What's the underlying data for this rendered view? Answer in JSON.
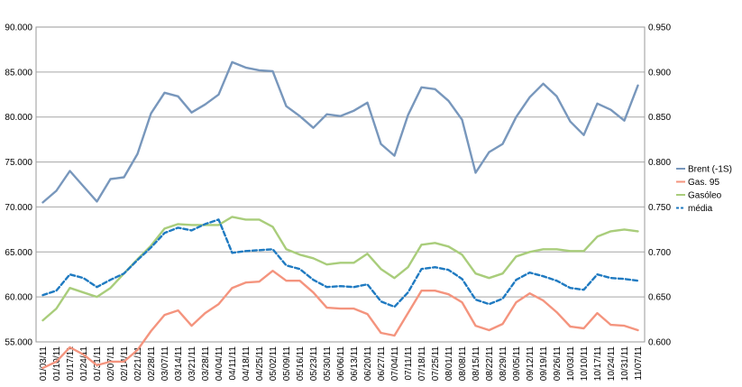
{
  "chart_data": {
    "type": "line",
    "title": "",
    "xlabel": "",
    "ylabel": "",
    "x_ticks": [
      "01/03/11",
      "01/10/11",
      "01/17/11",
      "01/24/11",
      "01/31/11",
      "02/07/11",
      "02/14/11",
      "02/21/11",
      "02/28/11",
      "03/07/11",
      "03/14/11",
      "03/21/11",
      "03/28/11",
      "04/04/11",
      "04/11/11",
      "04/18/11",
      "04/25/11",
      "05/02/11",
      "05/09/11",
      "05/16/11",
      "05/23/11",
      "05/30/11",
      "06/06/11",
      "06/13/11",
      "06/20/11",
      "06/27/11",
      "07/04/11",
      "07/11/11",
      "07/18/11",
      "07/25/11",
      "08/01/11",
      "08/08/11",
      "08/15/11",
      "08/22/11",
      "08/29/11",
      "09/05/11",
      "09/12/11",
      "09/19/11",
      "09/26/11",
      "10/03/11",
      "10/10/11",
      "10/17/11",
      "10/24/11",
      "10/31/11",
      "11/07/11"
    ],
    "y_left": {
      "ylim": [
        55,
        90
      ],
      "ticks": [
        "55.000",
        "60.000",
        "65.000",
        "70.000",
        "75.000",
        "80.000",
        "85.000",
        "90.000"
      ]
    },
    "y_right": {
      "ylim": [
        0.6,
        0.95
      ],
      "ticks": [
        "0.600",
        "0.650",
        "0.700",
        "0.750",
        "0.800",
        "0.850",
        "0.900",
        "0.950"
      ]
    },
    "grid": "horizontal",
    "legend_position": "right",
    "series": [
      {
        "name": "Brent (-1S)",
        "axis": "left",
        "color": "#7897BC",
        "style": "solid",
        "values": [
          70.5,
          71.8,
          74.0,
          72.3,
          70.6,
          73.1,
          73.3,
          75.9,
          80.4,
          82.7,
          82.3,
          80.5,
          81.4,
          82.5,
          86.1,
          85.5,
          85.2,
          85.1,
          81.2,
          80.1,
          78.8,
          80.3,
          80.1,
          80.7,
          81.6,
          77.0,
          75.7,
          80.2,
          83.3,
          83.1,
          81.8,
          79.7,
          73.8,
          76.1,
          77.0,
          80.0,
          82.2,
          83.7,
          82.3,
          79.5,
          78.0,
          81.5,
          80.8,
          79.6,
          83.5
        ]
      },
      {
        "name": "Gas. 95",
        "axis": "right",
        "color": "#F4947E",
        "style": "solid",
        "values": [
          0.571,
          0.578,
          0.594,
          0.586,
          0.574,
          0.578,
          0.578,
          0.591,
          0.612,
          0.63,
          0.635,
          0.618,
          0.632,
          0.642,
          0.66,
          0.666,
          0.667,
          0.679,
          0.668,
          0.668,
          0.655,
          0.638,
          0.637,
          0.637,
          0.631,
          0.61,
          0.607,
          0.632,
          0.657,
          0.657,
          0.653,
          0.644,
          0.618,
          0.613,
          0.62,
          0.644,
          0.654,
          0.646,
          0.633,
          0.617,
          0.615,
          0.632,
          0.619,
          0.618,
          0.613
        ]
      },
      {
        "name": "Gasóleo",
        "axis": "right",
        "color": "#A9CD7B",
        "style": "solid",
        "values": [
          0.624,
          0.637,
          0.66,
          0.655,
          0.65,
          0.66,
          0.676,
          0.692,
          0.707,
          0.726,
          0.731,
          0.73,
          0.73,
          0.73,
          0.739,
          0.736,
          0.736,
          0.728,
          0.703,
          0.697,
          0.693,
          0.686,
          0.688,
          0.688,
          0.698,
          0.681,
          0.671,
          0.683,
          0.708,
          0.71,
          0.706,
          0.697,
          0.676,
          0.671,
          0.676,
          0.695,
          0.7,
          0.703,
          0.703,
          0.701,
          0.701,
          0.717,
          0.723,
          0.725,
          0.723
        ]
      },
      {
        "name": "média",
        "axis": "right",
        "color": "#1F7AC1",
        "style": "dashed",
        "values": [
          0.652,
          0.657,
          0.675,
          0.671,
          0.661,
          0.669,
          0.676,
          0.691,
          0.705,
          0.721,
          0.727,
          0.724,
          0.731,
          0.736,
          0.699,
          0.701,
          0.702,
          0.703,
          0.685,
          0.681,
          0.669,
          0.661,
          0.662,
          0.661,
          0.664,
          0.645,
          0.639,
          0.655,
          0.681,
          0.683,
          0.68,
          0.67,
          0.647,
          0.642,
          0.648,
          0.669,
          0.677,
          0.673,
          0.668,
          0.66,
          0.658,
          0.675,
          0.671,
          0.67,
          0.668
        ]
      }
    ]
  }
}
